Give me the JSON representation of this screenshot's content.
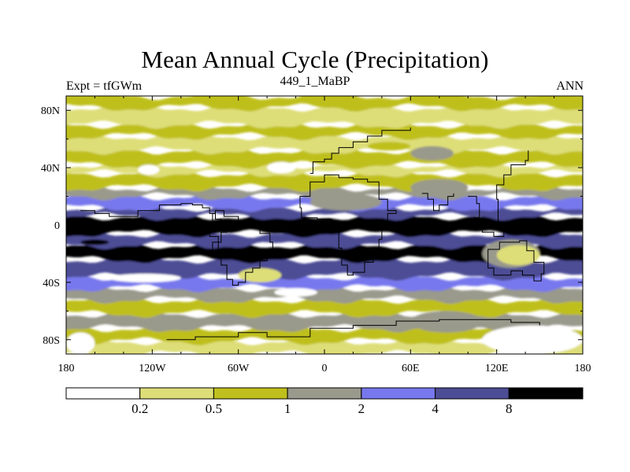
{
  "chart_data": {
    "type": "heatmap",
    "title": "Mean Annual Cycle (Precipitation)",
    "subtitle_left": "Expt = tfGWm",
    "subtitle_center": "449_1_MaBP",
    "subtitle_right": "ANN",
    "xlim": [
      -180,
      180
    ],
    "ylim": [
      -90,
      90
    ],
    "x_ticks": [
      {
        "value": -180,
        "label": "180"
      },
      {
        "value": -120,
        "label": "120W"
      },
      {
        "value": -60,
        "label": "60W"
      },
      {
        "value": 0,
        "label": "0"
      },
      {
        "value": 60,
        "label": "60E"
      },
      {
        "value": 120,
        "label": "120E"
      },
      {
        "value": 180,
        "label": "180"
      }
    ],
    "y_ticks": [
      {
        "value": 80,
        "label": "80N"
      },
      {
        "value": 40,
        "label": "40N"
      },
      {
        "value": 0,
        "label": "0"
      },
      {
        "value": -40,
        "label": "40S"
      },
      {
        "value": -80,
        "label": "80S"
      }
    ],
    "levels": [
      0.2,
      0.5,
      1,
      2,
      4,
      8
    ],
    "level_labels": [
      "0.2",
      "0.5",
      "1",
      "2",
      "4",
      "8"
    ],
    "colors": [
      "#ffffff",
      "#dede78",
      "#bfbf1d",
      "#99998c",
      "#7878ee",
      "#4d4d96",
      "#000000"
    ],
    "zonal_bands": [
      {
        "lat": [
          -90,
          -81
        ],
        "level": 1
      },
      {
        "lat": [
          -81,
          -72
        ],
        "level": 2
      },
      {
        "lat": [
          -72,
          -62
        ],
        "level": 3
      },
      {
        "lat": [
          -62,
          -52
        ],
        "level": 2
      },
      {
        "lat": [
          -52,
          -44
        ],
        "level": 3
      },
      {
        "lat": [
          -44,
          -36
        ],
        "level": 4
      },
      {
        "lat": [
          -36,
          -24
        ],
        "level": 5
      },
      {
        "lat": [
          -24,
          -14
        ],
        "level": 6
      },
      {
        "lat": [
          -14,
          -6
        ],
        "level": 5
      },
      {
        "lat": [
          -6,
          6
        ],
        "level": 6
      },
      {
        "lat": [
          6,
          12
        ],
        "level": 5
      },
      {
        "lat": [
          12,
          20
        ],
        "level": 4
      },
      {
        "lat": [
          20,
          26
        ],
        "level": 3
      },
      {
        "lat": [
          26,
          36
        ],
        "level": 2
      },
      {
        "lat": [
          36,
          42
        ],
        "level": 1
      },
      {
        "lat": [
          42,
          52
        ],
        "level": 2
      },
      {
        "lat": [
          52,
          62
        ],
        "level": 1
      },
      {
        "lat": [
          62,
          70
        ],
        "level": 2
      },
      {
        "lat": [
          70,
          82
        ],
        "level": 1
      },
      {
        "lat": [
          82,
          90
        ],
        "level": 2
      }
    ],
    "features": [
      {
        "lon": [
          -170,
          -150
        ],
        "lat": [
          -14,
          -10
        ],
        "level": 7,
        "kind": "ellipse"
      },
      {
        "lon": [
          -130,
          -115
        ],
        "lat": [
          35,
          42
        ],
        "level": 0,
        "kind": "ellipse"
      },
      {
        "lon": [
          -40,
          -20
        ],
        "lat": [
          36,
          44
        ],
        "level": 0,
        "kind": "ellipse"
      },
      {
        "lon": [
          -150,
          -100
        ],
        "lat": [
          -40,
          -34
        ],
        "level": 0,
        "kind": "ellipse"
      },
      {
        "lon": [
          -60,
          -30
        ],
        "lat": [
          -40,
          -30
        ],
        "level": 1,
        "kind": "ellipse"
      },
      {
        "lon": [
          -35,
          -5
        ],
        "lat": [
          -50,
          -44
        ],
        "level": 0,
        "kind": "ellipse"
      },
      {
        "lon": [
          110,
          150
        ],
        "lat": [
          -30,
          -10
        ],
        "level": 3,
        "kind": "ellipse"
      },
      {
        "lon": [
          120,
          150
        ],
        "lat": [
          -28,
          -14
        ],
        "level": 1,
        "kind": "ellipse"
      },
      {
        "lon": [
          110,
          180
        ],
        "lat": [
          -90,
          -70
        ],
        "level": 0,
        "kind": "ellipse"
      },
      {
        "lon": [
          60,
          110
        ],
        "lat": [
          -75,
          -60
        ],
        "level": 3,
        "kind": "ellipse"
      },
      {
        "lon": [
          -180,
          -160
        ],
        "lat": [
          -90,
          -75
        ],
        "level": 0,
        "kind": "ellipse"
      },
      {
        "lon": [
          -10,
          40
        ],
        "lat": [
          10,
          22
        ],
        "level": 3,
        "kind": "ellipse"
      },
      {
        "lon": [
          60,
          100
        ],
        "lat": [
          20,
          32
        ],
        "level": 3,
        "kind": "ellipse"
      },
      {
        "lon": [
          60,
          90
        ],
        "lat": [
          45,
          55
        ],
        "level": 3,
        "kind": "ellipse"
      },
      {
        "lon": [
          30,
          60
        ],
        "lat": [
          52,
          58
        ],
        "level": 2,
        "kind": "ellipse"
      }
    ],
    "coastlines": [
      {
        "name": "north-america",
        "points": [
          [
            -170,
            10
          ],
          [
            -160,
            8
          ],
          [
            -150,
            6
          ],
          [
            -130,
            10
          ],
          [
            -115,
            14
          ],
          [
            -100,
            15
          ],
          [
            -92,
            14
          ],
          [
            -85,
            12
          ],
          [
            -80,
            8
          ],
          [
            -76,
            4
          ],
          [
            -72,
            0
          ],
          [
            -68,
            -5
          ],
          [
            -72,
            -12
          ],
          [
            -78,
            -20
          ]
        ]
      },
      {
        "name": "south-america",
        "points": [
          [
            -78,
            -2
          ],
          [
            -80,
            -8
          ],
          [
            -74,
            -18
          ],
          [
            -72,
            -28
          ],
          [
            -68,
            -38
          ],
          [
            -64,
            -42
          ],
          [
            -60,
            -40
          ],
          [
            -55,
            -33
          ],
          [
            -50,
            -30
          ],
          [
            -45,
            -25
          ],
          [
            -40,
            -20
          ],
          [
            -36,
            -12
          ],
          [
            -38,
            -6
          ],
          [
            -45,
            -2
          ],
          [
            -52,
            2
          ],
          [
            -60,
            6
          ],
          [
            -70,
            10
          ],
          [
            -76,
            8
          ],
          [
            -78,
            -2
          ]
        ]
      },
      {
        "name": "africa",
        "points": [
          [
            -16,
            12
          ],
          [
            -17,
            20
          ],
          [
            -10,
            30
          ],
          [
            0,
            35
          ],
          [
            10,
            33
          ],
          [
            20,
            32
          ],
          [
            30,
            30
          ],
          [
            38,
            18
          ],
          [
            44,
            10
          ],
          [
            50,
            8
          ],
          [
            44,
            0
          ],
          [
            40,
            -10
          ],
          [
            38,
            -18
          ],
          [
            34,
            -26
          ],
          [
            28,
            -33
          ],
          [
            20,
            -35
          ],
          [
            16,
            -28
          ],
          [
            12,
            -16
          ],
          [
            10,
            -2
          ],
          [
            5,
            4
          ],
          [
            -5,
            5
          ],
          [
            -16,
            12
          ]
        ]
      },
      {
        "name": "india",
        "points": [
          [
            68,
            22
          ],
          [
            72,
            18
          ],
          [
            76,
            10
          ],
          [
            80,
            14
          ],
          [
            86,
            20
          ],
          [
            90,
            22
          ]
        ]
      },
      {
        "name": "australia",
        "points": [
          [
            114,
            -22
          ],
          [
            114,
            -30
          ],
          [
            118,
            -35
          ],
          [
            130,
            -32
          ],
          [
            138,
            -35
          ],
          [
            146,
            -39
          ],
          [
            151,
            -34
          ],
          [
            153,
            -26
          ],
          [
            146,
            -18
          ],
          [
            141,
            -11
          ],
          [
            136,
            -12
          ],
          [
            130,
            -12
          ],
          [
            122,
            -17
          ],
          [
            114,
            -22
          ]
        ]
      },
      {
        "name": "antarctica",
        "points": [
          [
            -110,
            -80
          ],
          [
            -90,
            -78
          ],
          [
            -60,
            -75
          ],
          [
            -40,
            -78
          ],
          [
            -10,
            -72
          ],
          [
            20,
            -70
          ],
          [
            50,
            -67
          ],
          [
            80,
            -66
          ],
          [
            110,
            -66
          ],
          [
            130,
            -68
          ],
          [
            150,
            -70
          ]
        ]
      },
      {
        "name": "asia-east",
        "points": [
          [
            100,
            20
          ],
          [
            106,
            15
          ],
          [
            108,
            5
          ],
          [
            104,
            0
          ],
          [
            110,
            -5
          ],
          [
            118,
            -8
          ],
          [
            125,
            2
          ],
          [
            121,
            18
          ],
          [
            120,
            28
          ],
          [
            125,
            35
          ],
          [
            130,
            42
          ],
          [
            140,
            45
          ],
          [
            142,
            52
          ]
        ]
      },
      {
        "name": "europe",
        "points": [
          [
            -10,
            36
          ],
          [
            -8,
            44
          ],
          [
            0,
            46
          ],
          [
            5,
            50
          ],
          [
            10,
            54
          ],
          [
            20,
            58
          ],
          [
            30,
            62
          ],
          [
            40,
            66
          ],
          [
            60,
            68
          ]
        ]
      }
    ]
  }
}
